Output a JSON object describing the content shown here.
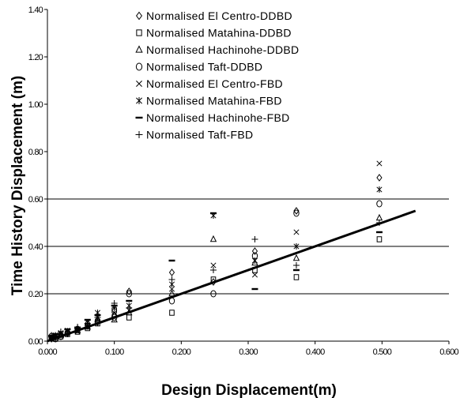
{
  "chart_data": {
    "type": "scatter",
    "title": "",
    "xlabel": "Design Displacement(m)",
    "ylabel": "Time History Displacement (m)",
    "xlim": [
      0,
      0.6
    ],
    "ylim": [
      0,
      1.4
    ],
    "x_ticks": [
      "0.000",
      "0.100",
      "0.200",
      "0.300",
      "0.400",
      "0.500",
      "0.600"
    ],
    "y_ticks": [
      "0.00",
      "0.20",
      "0.40",
      "0.60",
      "0.80",
      "1.00",
      "1.20",
      "1.40"
    ],
    "gridlines_y": [
      0.2,
      0.4,
      0.6
    ],
    "legend_position": "top-center",
    "fit_line": {
      "x": [
        0.0,
        0.55
      ],
      "y": [
        0.0,
        0.55
      ]
    },
    "series": [
      {
        "name": "Normalised El Centro-DDBD",
        "marker": "diamond",
        "x": [
          0.006,
          0.012,
          0.02,
          0.03,
          0.045,
          0.06,
          0.075,
          0.1,
          0.122,
          0.186,
          0.248,
          0.31,
          0.372,
          0.496
        ],
        "y": [
          0.01,
          0.02,
          0.03,
          0.035,
          0.05,
          0.065,
          0.08,
          0.11,
          0.21,
          0.29,
          0.25,
          0.38,
          0.55,
          0.69
        ]
      },
      {
        "name": "Normalised Matahina-DDBD",
        "marker": "square",
        "x": [
          0.006,
          0.012,
          0.02,
          0.03,
          0.045,
          0.06,
          0.075,
          0.1,
          0.122,
          0.186,
          0.248,
          0.31,
          0.372,
          0.496
        ],
        "y": [
          0.015,
          0.01,
          0.02,
          0.03,
          0.04,
          0.055,
          0.075,
          0.13,
          0.1,
          0.12,
          0.26,
          0.3,
          0.27,
          0.43
        ]
      },
      {
        "name": "Normalised Hachinohe-DDBD",
        "marker": "triangle",
        "x": [
          0.006,
          0.012,
          0.02,
          0.03,
          0.045,
          0.06,
          0.075,
          0.1,
          0.122,
          0.186,
          0.248,
          0.31,
          0.372,
          0.496
        ],
        "y": [
          0.01,
          0.015,
          0.025,
          0.04,
          0.045,
          0.06,
          0.09,
          0.09,
          0.12,
          0.2,
          0.43,
          0.33,
          0.35,
          0.52
        ]
      },
      {
        "name": "Normalised Taft-DDBD",
        "marker": "circle",
        "x": [
          0.006,
          0.012,
          0.02,
          0.03,
          0.045,
          0.06,
          0.075,
          0.1,
          0.122,
          0.186,
          0.248,
          0.31,
          0.372,
          0.496
        ],
        "y": [
          0.02,
          0.01,
          0.02,
          0.035,
          0.05,
          0.07,
          0.085,
          0.1,
          0.2,
          0.17,
          0.2,
          0.36,
          0.54,
          0.58
        ]
      },
      {
        "name": "Normalised El Centro-FBD",
        "marker": "x",
        "x": [
          0.006,
          0.012,
          0.02,
          0.03,
          0.045,
          0.06,
          0.075,
          0.1,
          0.122,
          0.186,
          0.248,
          0.31,
          0.372,
          0.496
        ],
        "y": [
          0.015,
          0.02,
          0.03,
          0.045,
          0.04,
          0.06,
          0.1,
          0.12,
          0.13,
          0.22,
          0.32,
          0.28,
          0.46,
          0.75
        ]
      },
      {
        "name": "Normalised Matahina-FBD",
        "marker": "asterisk",
        "x": [
          0.006,
          0.012,
          0.02,
          0.03,
          0.045,
          0.06,
          0.075,
          0.1,
          0.122,
          0.186,
          0.248,
          0.31,
          0.372,
          0.496
        ],
        "y": [
          0.01,
          0.025,
          0.035,
          0.04,
          0.05,
          0.08,
          0.12,
          0.14,
          0.15,
          0.24,
          0.53,
          0.34,
          0.4,
          0.64
        ]
      },
      {
        "name": "Normalised Hachinohe-FBD",
        "marker": "dash",
        "x": [
          0.006,
          0.012,
          0.02,
          0.03,
          0.045,
          0.06,
          0.075,
          0.1,
          0.122,
          0.186,
          0.248,
          0.31,
          0.372,
          0.496
        ],
        "y": [
          0.02,
          0.03,
          0.02,
          0.05,
          0.055,
          0.09,
          0.11,
          0.15,
          0.17,
          0.34,
          0.54,
          0.22,
          0.3,
          0.46
        ]
      },
      {
        "name": "Normalised Taft-FBD",
        "marker": "plus",
        "x": [
          0.006,
          0.012,
          0.02,
          0.03,
          0.045,
          0.06,
          0.075,
          0.1,
          0.122,
          0.186,
          0.248,
          0.31,
          0.372,
          0.496
        ],
        "y": [
          0.025,
          0.015,
          0.04,
          0.03,
          0.06,
          0.075,
          0.1,
          0.16,
          0.14,
          0.26,
          0.3,
          0.43,
          0.32,
          0.5
        ]
      }
    ]
  }
}
